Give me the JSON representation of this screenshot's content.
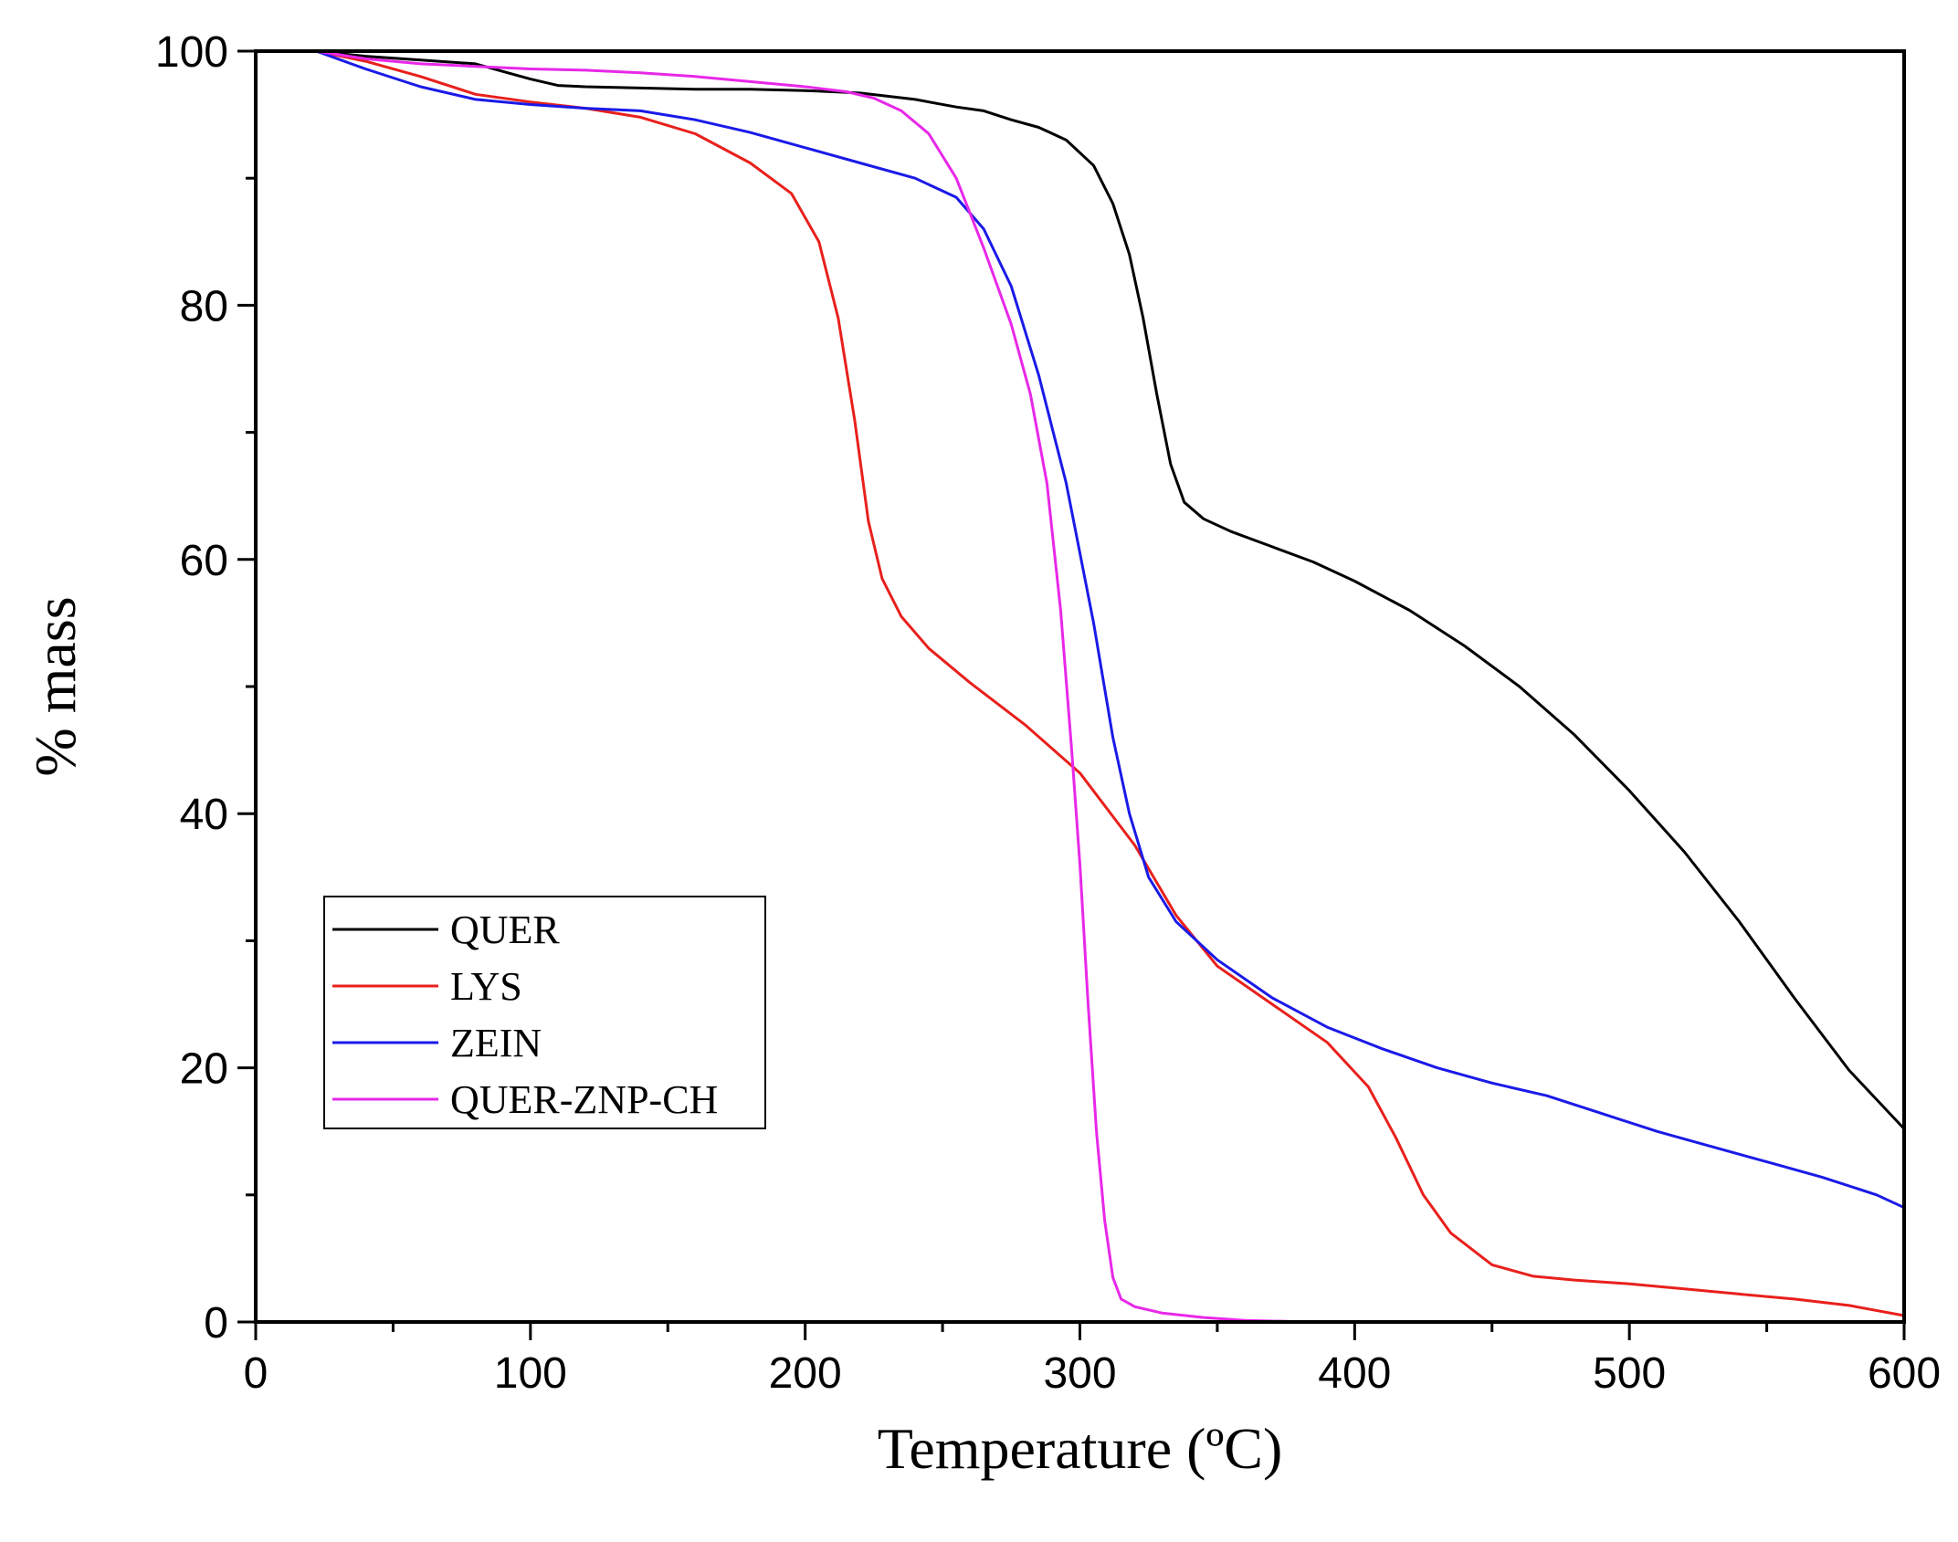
{
  "chart_data": {
    "type": "line",
    "title": "",
    "xlabel": "Temperature (ºC)",
    "ylabel": "% mass",
    "xlim": [
      0,
      600
    ],
    "ylim": [
      0,
      100
    ],
    "x_ticks": [
      0,
      100,
      200,
      300,
      400,
      500,
      600
    ],
    "y_ticks": [
      0,
      20,
      40,
      60,
      80,
      100
    ],
    "grid": false,
    "legend_position": "bottom-left",
    "series": [
      {
        "name": "QUER",
        "color": "#000000",
        "points": [
          [
            22,
            100
          ],
          [
            40,
            99.6
          ],
          [
            60,
            99.3
          ],
          [
            80,
            99.0
          ],
          [
            90,
            98.4
          ],
          [
            100,
            97.8
          ],
          [
            110,
            97.3
          ],
          [
            120,
            97.2
          ],
          [
            140,
            97.1
          ],
          [
            160,
            97.0
          ],
          [
            180,
            97.0
          ],
          [
            200,
            96.9
          ],
          [
            220,
            96.7
          ],
          [
            240,
            96.2
          ],
          [
            255,
            95.6
          ],
          [
            265,
            95.3
          ],
          [
            275,
            94.6
          ],
          [
            285,
            94.0
          ],
          [
            295,
            93.0
          ],
          [
            305,
            91.0
          ],
          [
            312,
            88.0
          ],
          [
            318,
            84.0
          ],
          [
            323,
            79.0
          ],
          [
            328,
            73.0
          ],
          [
            333,
            67.5
          ],
          [
            338,
            64.5
          ],
          [
            345,
            63.2
          ],
          [
            355,
            62.2
          ],
          [
            370,
            61.0
          ],
          [
            385,
            59.8
          ],
          [
            400,
            58.3
          ],
          [
            420,
            56.0
          ],
          [
            440,
            53.2
          ],
          [
            460,
            50.0
          ],
          [
            480,
            46.2
          ],
          [
            500,
            41.8
          ],
          [
            520,
            37.0
          ],
          [
            540,
            31.5
          ],
          [
            560,
            25.5
          ],
          [
            580,
            19.8
          ],
          [
            590,
            17.5
          ],
          [
            600,
            15.2
          ]
        ]
      },
      {
        "name": "LYS",
        "color": "#e8201c",
        "points": [
          [
            22,
            100
          ],
          [
            40,
            99.2
          ],
          [
            60,
            98.0
          ],
          [
            80,
            96.6
          ],
          [
            100,
            96.0
          ],
          [
            120,
            95.5
          ],
          [
            140,
            94.8
          ],
          [
            160,
            93.5
          ],
          [
            180,
            91.2
          ],
          [
            195,
            88.8
          ],
          [
            205,
            85.0
          ],
          [
            212,
            79.0
          ],
          [
            218,
            71.0
          ],
          [
            223,
            63.0
          ],
          [
            228,
            58.5
          ],
          [
            235,
            55.5
          ],
          [
            245,
            53.0
          ],
          [
            260,
            50.3
          ],
          [
            280,
            47.0
          ],
          [
            300,
            43.2
          ],
          [
            320,
            37.5
          ],
          [
            335,
            32.0
          ],
          [
            350,
            28.0
          ],
          [
            370,
            25.0
          ],
          [
            390,
            22.0
          ],
          [
            405,
            18.5
          ],
          [
            415,
            14.5
          ],
          [
            425,
            10.0
          ],
          [
            435,
            7.0
          ],
          [
            450,
            4.5
          ],
          [
            465,
            3.6
          ],
          [
            480,
            3.3
          ],
          [
            500,
            3.0
          ],
          [
            520,
            2.6
          ],
          [
            540,
            2.2
          ],
          [
            560,
            1.8
          ],
          [
            580,
            1.3
          ],
          [
            600,
            0.5
          ]
        ]
      },
      {
        "name": "ZEIN",
        "color": "#1a1ae8",
        "points": [
          [
            22,
            100
          ],
          [
            40,
            98.6
          ],
          [
            60,
            97.2
          ],
          [
            80,
            96.2
          ],
          [
            100,
            95.8
          ],
          [
            120,
            95.5
          ],
          [
            140,
            95.3
          ],
          [
            160,
            94.6
          ],
          [
            180,
            93.6
          ],
          [
            200,
            92.4
          ],
          [
            220,
            91.2
          ],
          [
            240,
            90.0
          ],
          [
            255,
            88.5
          ],
          [
            265,
            86.0
          ],
          [
            275,
            81.5
          ],
          [
            285,
            74.5
          ],
          [
            295,
            66.0
          ],
          [
            305,
            55.0
          ],
          [
            312,
            46.0
          ],
          [
            318,
            40.0
          ],
          [
            325,
            35.0
          ],
          [
            335,
            31.5
          ],
          [
            350,
            28.5
          ],
          [
            370,
            25.5
          ],
          [
            390,
            23.2
          ],
          [
            410,
            21.5
          ],
          [
            430,
            20.0
          ],
          [
            450,
            18.8
          ],
          [
            470,
            17.8
          ],
          [
            490,
            16.4
          ],
          [
            510,
            15.0
          ],
          [
            530,
            13.8
          ],
          [
            550,
            12.6
          ],
          [
            570,
            11.4
          ],
          [
            590,
            10.0
          ],
          [
            600,
            9.0
          ]
        ]
      },
      {
        "name": "QUER-ZNP-CH",
        "color": "#e828e8",
        "points": [
          [
            22,
            100
          ],
          [
            40,
            99.4
          ],
          [
            60,
            99.0
          ],
          [
            80,
            98.8
          ],
          [
            100,
            98.6
          ],
          [
            120,
            98.5
          ],
          [
            140,
            98.3
          ],
          [
            160,
            98.0
          ],
          [
            180,
            97.6
          ],
          [
            200,
            97.2
          ],
          [
            215,
            96.8
          ],
          [
            225,
            96.3
          ],
          [
            235,
            95.3
          ],
          [
            245,
            93.5
          ],
          [
            255,
            90.0
          ],
          [
            265,
            84.5
          ],
          [
            275,
            78.5
          ],
          [
            282,
            73.0
          ],
          [
            288,
            66.0
          ],
          [
            293,
            56.0
          ],
          [
            297,
            45.0
          ],
          [
            300,
            36.0
          ],
          [
            303,
            25.0
          ],
          [
            306,
            15.0
          ],
          [
            309,
            8.0
          ],
          [
            312,
            3.5
          ],
          [
            315,
            1.8
          ],
          [
            320,
            1.2
          ],
          [
            330,
            0.7
          ],
          [
            345,
            0.35
          ],
          [
            360,
            0.12
          ],
          [
            375,
            0.05
          ],
          [
            380,
            0.0
          ]
        ]
      }
    ]
  }
}
